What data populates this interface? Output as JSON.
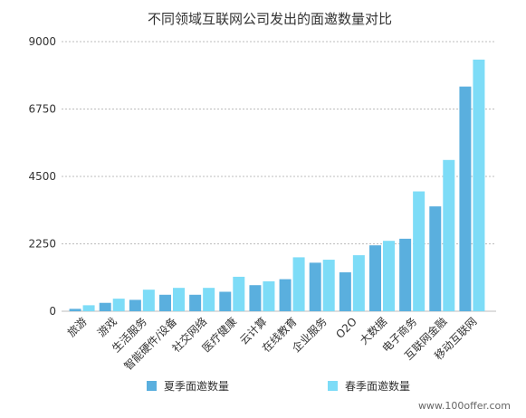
{
  "chart_data": {
    "type": "bar",
    "title": "不同领域互联网公司发出的面邀数量对比",
    "categories": [
      "旅游",
      "游戏",
      "生活服务",
      "智能硬件/设备",
      "社交网络",
      "医疗健康",
      "云计算",
      "在线教育",
      "企业服务",
      "O2O",
      "大数据",
      "电子商务",
      "互联网金融",
      "移动互联网"
    ],
    "series": [
      {
        "name": "夏季面邀数量",
        "color": "#5aafde",
        "values": [
          80,
          280,
          380,
          550,
          550,
          650,
          870,
          1070,
          1620,
          1300,
          2200,
          2420,
          3500,
          7500
        ]
      },
      {
        "name": "春季面邀数量",
        "color": "#7ddcf7",
        "values": [
          200,
          420,
          720,
          780,
          780,
          1150,
          1000,
          1800,
          1720,
          1870,
          2350,
          4000,
          5050,
          8400
        ]
      }
    ],
    "ylim": [
      0,
      9000
    ],
    "yticks": [
      0,
      2250,
      4500,
      6750,
      9000
    ],
    "grid": true,
    "legend": "bottom"
  },
  "watermark": "www.100offer.com"
}
